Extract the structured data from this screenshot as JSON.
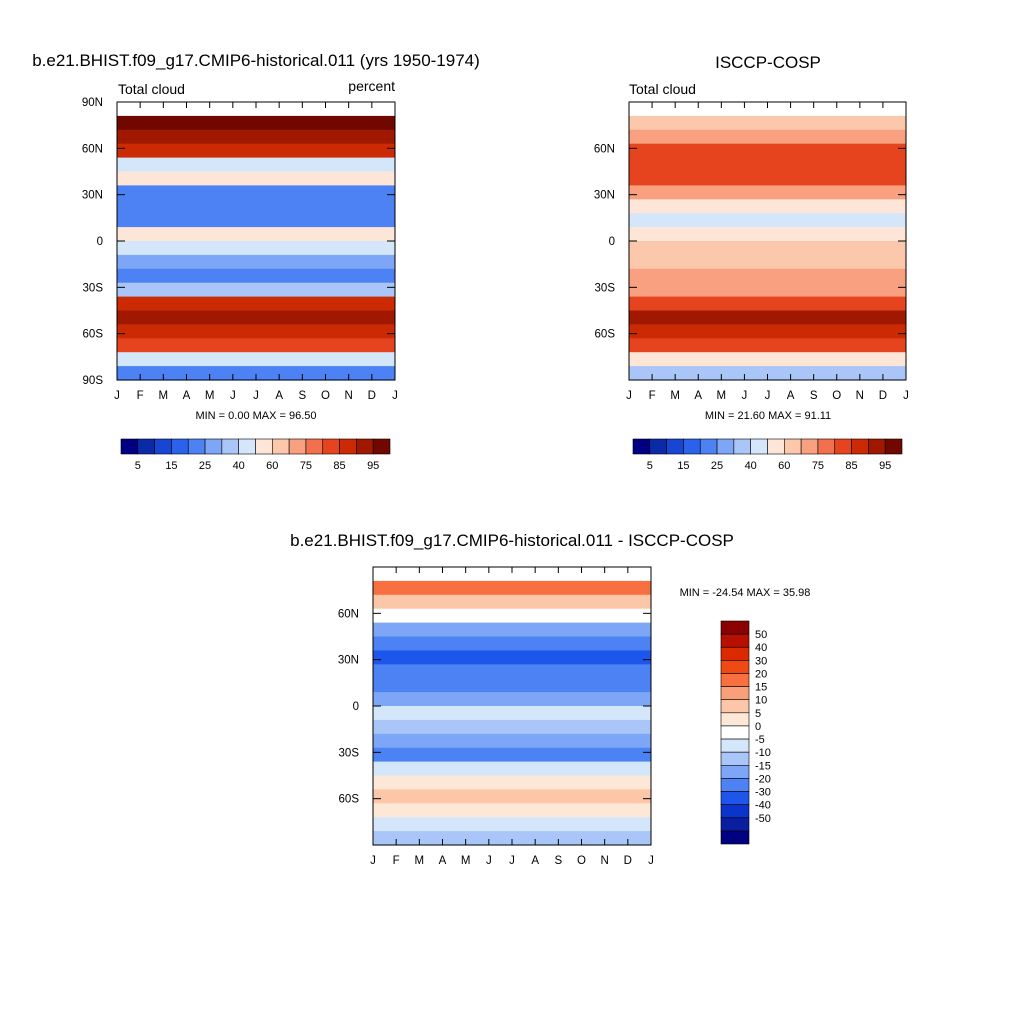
{
  "chart_data": [
    {
      "type": "heatmap",
      "title": "b.e21.BHIST.f09_g17.CMIP6-historical.011 (yrs 1950-1974)",
      "left_label": "Total cloud",
      "right_label": "percent",
      "x_ticks": [
        "J",
        "F",
        "M",
        "A",
        "M",
        "J",
        "J",
        "A",
        "S",
        "O",
        "N",
        "D",
        "J"
      ],
      "y_ticks": [
        "90N",
        "60N",
        "30N",
        "0",
        "30S",
        "60S",
        "90S"
      ],
      "stats": "MIN =   0.00 MAX =  96.50",
      "colorbar": {
        "tick_labels": [
          "5",
          "15",
          "25",
          "40",
          "60",
          "75",
          "85",
          "95"
        ],
        "colors": [
          "#000080",
          "#0a2aa8",
          "#1746d4",
          "#2a62ec",
          "#4c82f4",
          "#7ea6f6",
          "#aac6f8",
          "#d4e6fa",
          "#fde6d8",
          "#fbc8ac",
          "#f8a080",
          "#f2704c",
          "#e6441e",
          "#cc2a04",
          "#a01800",
          "#700800"
        ]
      },
      "rows_north_to_south": [
        0,
        95,
        90,
        85,
        45,
        50,
        30,
        25,
        30,
        55,
        45,
        35,
        30,
        40,
        85,
        90,
        85,
        75,
        45,
        25
      ],
      "row_lats": [
        90,
        81,
        72,
        63,
        54,
        45,
        36,
        27,
        18,
        9,
        0,
        -9,
        -18,
        -27,
        -36,
        -45,
        -54,
        -63,
        -72,
        -81
      ]
    },
    {
      "type": "heatmap",
      "title": "ISCCP-COSP",
      "left_label": "Total cloud",
      "x_ticks": [
        "J",
        "F",
        "M",
        "A",
        "M",
        "J",
        "J",
        "A",
        "S",
        "O",
        "N",
        "D",
        "J"
      ],
      "y_ticks": [
        "60N",
        "30N",
        "0",
        "30S",
        "60S"
      ],
      "stats": "MIN =  21.60 MAX =  91.11",
      "colorbar": {
        "tick_labels": [
          "5",
          "15",
          "25",
          "40",
          "60",
          "75",
          "85",
          "95"
        ]
      },
      "rows_north_to_south": [
        0,
        60,
        65,
        75,
        80,
        75,
        65,
        50,
        45,
        55,
        60,
        60,
        65,
        65,
        80,
        90,
        85,
        75,
        55,
        40
      ],
      "row_lats": [
        90,
        81,
        72,
        63,
        54,
        45,
        36,
        27,
        18,
        9,
        0,
        -9,
        -18,
        -27,
        -36,
        -45,
        -54,
        -63,
        -72,
        -81
      ]
    },
    {
      "type": "heatmap",
      "title": "b.e21.BHIST.f09_g17.CMIP6-historical.011 - ISCCP-COSP",
      "x_ticks": [
        "J",
        "F",
        "M",
        "A",
        "M",
        "J",
        "J",
        "A",
        "S",
        "O",
        "N",
        "D",
        "J"
      ],
      "y_ticks": [
        "60N",
        "30N",
        "0",
        "30S",
        "60S"
      ],
      "stats": "MIN = -24.54 MAX =  35.98",
      "colorbar": {
        "tick_labels": [
          "50",
          "40",
          "30",
          "20",
          "15",
          "10",
          "5",
          "0",
          "-5",
          "-10",
          "-15",
          "-20",
          "-30",
          "-40",
          "-50"
        ],
        "colors_top_to_bottom": [
          "#8b0000",
          "#b81000",
          "#dc2a00",
          "#f04a14",
          "#f87040",
          "#faa078",
          "#fcc6a8",
          "#fde8d8",
          "#ffffff",
          "#d4e6fa",
          "#aac6f8",
          "#7ea6f6",
          "#4c82f4",
          "#1e56ec",
          "#0a34cc",
          "#0a1ea0",
          "#000080"
        ]
      },
      "rows_north_to_south": [
        0,
        25,
        10,
        0,
        -15,
        -20,
        -25,
        -20,
        -20,
        -15,
        -5,
        -10,
        -15,
        -20,
        -5,
        5,
        10,
        5,
        -5,
        -10
      ],
      "row_lats": [
        90,
        81,
        72,
        63,
        54,
        45,
        36,
        27,
        18,
        9,
        0,
        -9,
        -18,
        -27,
        -36,
        -45,
        -54,
        -63,
        -72,
        -81
      ]
    }
  ]
}
